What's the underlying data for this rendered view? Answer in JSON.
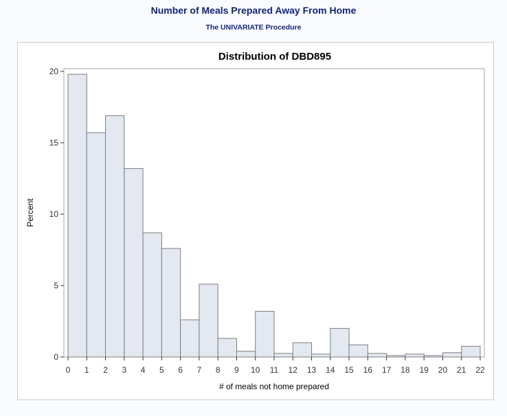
{
  "header": {
    "title": "Number of Meals Prepared Away From Home",
    "subtitle": "The UNIVARIATE Procedure"
  },
  "colors": {
    "header_text": "#112277",
    "bar_fill": "#e3e8f1",
    "bar_stroke": "#7d7d7d"
  },
  "chart_data": {
    "type": "bar",
    "title": "Distribution of DBD895",
    "xlabel": "# of meals not home prepared",
    "ylabel": "Percent",
    "bin_width": 1,
    "x_start": 0,
    "xlim": [
      0,
      22
    ],
    "ylim": [
      0,
      20
    ],
    "x_ticks": [
      0,
      1,
      2,
      3,
      4,
      5,
      6,
      7,
      8,
      9,
      10,
      11,
      12,
      13,
      14,
      15,
      16,
      17,
      18,
      19,
      20,
      21,
      22
    ],
    "y_ticks": [
      0,
      5,
      10,
      15,
      20
    ],
    "values": [
      19.8,
      15.7,
      16.9,
      13.2,
      8.7,
      7.6,
      2.6,
      5.1,
      1.3,
      0.4,
      3.2,
      0.25,
      1.0,
      0.2,
      2.0,
      0.85,
      0.25,
      0.1,
      0.2,
      0.1,
      0.3,
      0.75
    ],
    "grid": false,
    "legend": "none"
  }
}
